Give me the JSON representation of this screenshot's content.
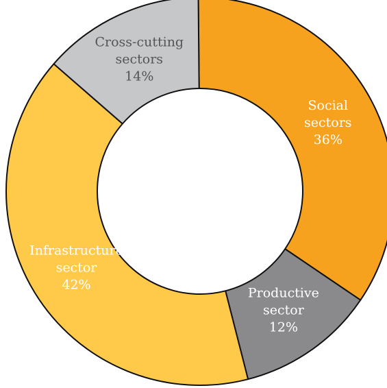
{
  "chart_data": {
    "type": "pie",
    "style": "donut",
    "title": "",
    "legend": "none",
    "slices": [
      {
        "name": "Social sectors",
        "label_lines": [
          "Social",
          "sectors"
        ],
        "value": 36,
        "value_label": "36%",
        "color": "#F6A21F",
        "text_color": "#ffffff"
      },
      {
        "name": "Productive sector",
        "label_lines": [
          "Productive",
          "sector"
        ],
        "value": 12,
        "value_label": "12%",
        "color": "#8A8A8D",
        "text_color": "#ffffff"
      },
      {
        "name": "Infrastructure sector",
        "label_lines": [
          "Infrastructure",
          "sector"
        ],
        "value": 42,
        "value_label": "42%",
        "color": "#FFC94A",
        "text_color": "#ffffff"
      },
      {
        "name": "Cross-cutting sectors",
        "label_lines": [
          "Cross-cutting",
          "sectors"
        ],
        "value": 14,
        "value_label": "14%",
        "color": "#C6C7C9",
        "text_color": "#555555"
      }
    ]
  }
}
